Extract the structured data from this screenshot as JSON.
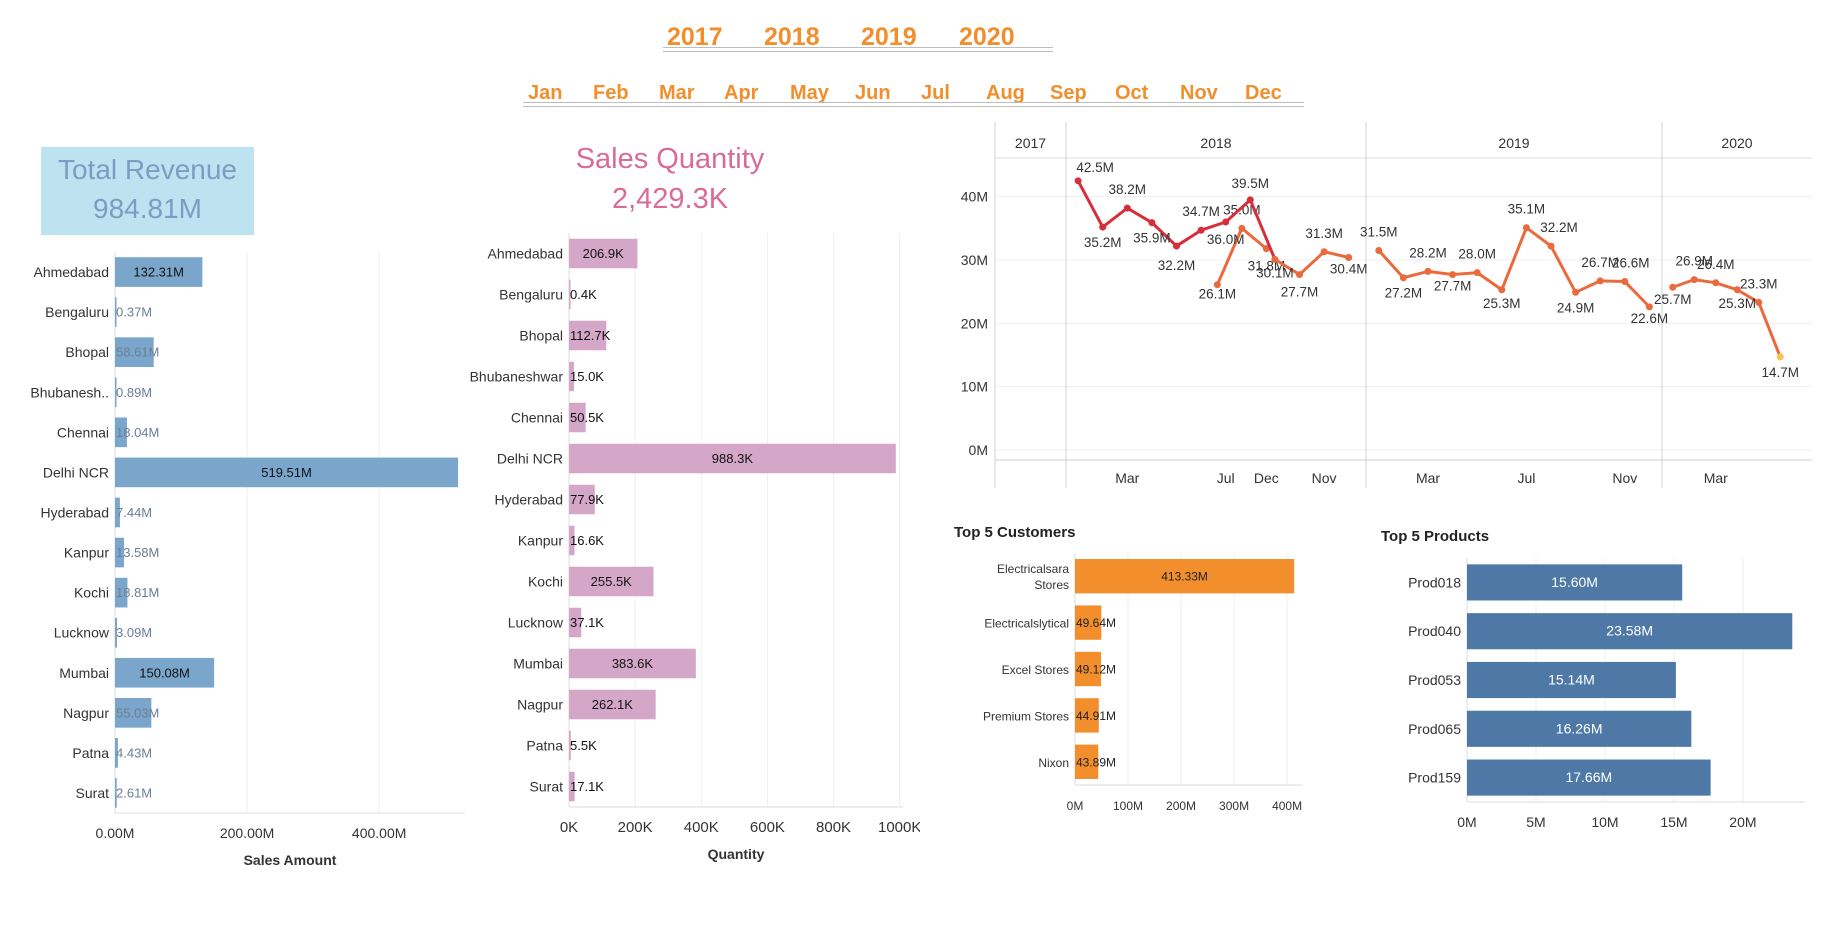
{
  "filters": {
    "years": [
      "2017",
      "2018",
      "2019",
      "2020"
    ],
    "months": [
      "Jan",
      "Feb",
      "Mar",
      "Apr",
      "May",
      "Jun",
      "Jul",
      "Aug",
      "Sep",
      "Oct",
      "Nov",
      "Dec"
    ]
  },
  "kpis": {
    "total_revenue": {
      "label": "Total Revenue",
      "value": "984.81M"
    },
    "sales_quantity": {
      "label": "Sales Quantity",
      "value": "2,429.3K"
    }
  },
  "colors": {
    "accent_orange": "#f28e2b",
    "revenue_bar": "#7aa6cc",
    "revenue_kpi_text": "#7b9dc3",
    "revenue_kpi_bg": "#bde3f1",
    "quantity_bar": "#d4a6c8",
    "quantity_kpi_text": "#d96b97",
    "products_bar": "#4e79a7",
    "line_dark": "#d62f3b",
    "line_mid": "#ea6a3d",
    "line_light": "#f7c24f"
  },
  "chart_data": [
    {
      "id": "revenue_by_market",
      "type": "bar",
      "orientation": "horizontal",
      "xlabel": "Sales Amount",
      "xlim": [
        0,
        530
      ],
      "xticks": [
        "0.00M",
        "200.00M",
        "400.00M"
      ],
      "categories": [
        "Ahmedabad",
        "Bengaluru",
        "Bhopal",
        "Bhubanesh..",
        "Chennai",
        "Delhi NCR",
        "Hyderabad",
        "Kanpur",
        "Kochi",
        "Lucknow",
        "Mumbai",
        "Nagpur",
        "Patna",
        "Surat"
      ],
      "values": [
        132.31,
        0.37,
        58.61,
        0.89,
        18.04,
        519.51,
        7.44,
        13.58,
        18.81,
        3.09,
        150.08,
        55.03,
        4.43,
        2.61
      ],
      "labels": [
        "132.31M",
        "0.37M",
        "58.61M",
        "0.89M",
        "18.04M",
        "519.51M",
        "7.44M",
        "13.58M",
        "18.81M",
        "3.09M",
        "150.08M",
        "55.03M",
        "4.43M",
        "2.61M"
      ]
    },
    {
      "id": "quantity_by_market",
      "type": "bar",
      "orientation": "horizontal",
      "xlabel": "Quantity",
      "xlim": [
        0,
        1010
      ],
      "xticks": [
        "0K",
        "200K",
        "400K",
        "600K",
        "800K",
        "1000K"
      ],
      "categories": [
        "Ahmedabad",
        "Bengaluru",
        "Bhopal",
        "Bhubaneshwar",
        "Chennai",
        "Delhi NCR",
        "Hyderabad",
        "Kanpur",
        "Kochi",
        "Lucknow",
        "Mumbai",
        "Nagpur",
        "Patna",
        "Surat"
      ],
      "values": [
        206.9,
        0.4,
        112.7,
        15.0,
        50.5,
        988.3,
        77.9,
        16.6,
        255.5,
        37.1,
        383.6,
        262.1,
        5.5,
        17.1
      ],
      "labels": [
        "206.9K",
        "0.4K",
        "112.7K",
        "15.0K",
        "50.5K",
        "988.3K",
        "77.9K",
        "16.6K",
        "255.5K",
        "37.1K",
        "383.6K",
        "262.1K",
        "5.5K",
        "17.1K"
      ]
    },
    {
      "id": "revenue_trend",
      "type": "line",
      "ylim": [
        0,
        45
      ],
      "yticks": [
        "0M",
        "10M",
        "20M",
        "30M",
        "40M"
      ],
      "panels": [
        {
          "year": "2017",
          "ticks": [
            "Dec"
          ],
          "x": [
            "Oct",
            "Nov",
            "Dec"
          ],
          "values": [
            26.1,
            35.0,
            31.8
          ],
          "labels": [
            "26.1M",
            "35.0M",
            "31.8M"
          ]
        },
        {
          "year": "2018",
          "ticks": [
            "Mar",
            "Jul",
            "Nov"
          ],
          "x": [
            "Jan",
            "Feb",
            "Mar",
            "Apr",
            "May",
            "Jun",
            "Jul",
            "Aug",
            "Sep",
            "Oct",
            "Nov",
            "Dec"
          ],
          "values": [
            42.5,
            35.2,
            38.2,
            35.9,
            32.2,
            34.7,
            36.0,
            39.5,
            30.1,
            27.7,
            31.3,
            30.4
          ],
          "labels": [
            "42.5M",
            "35.2M",
            "38.2M",
            "35.9M",
            "32.2M",
            "34.7M",
            "36.0M",
            "39.5M",
            "30.1M",
            "27.7M",
            "31.3M",
            "30.4M"
          ]
        },
        {
          "year": "2019",
          "ticks": [
            "Mar",
            "Jul",
            "Nov"
          ],
          "x": [
            "Jan",
            "Feb",
            "Mar",
            "Apr",
            "May",
            "Jun",
            "Jul",
            "Aug",
            "Sep",
            "Oct",
            "Nov",
            "Dec"
          ],
          "values": [
            31.5,
            27.2,
            28.2,
            27.7,
            28.0,
            25.3,
            35.1,
            32.2,
            24.9,
            26.7,
            26.6,
            22.6
          ],
          "labels": [
            "31.5M",
            "27.2M",
            "28.2M",
            "27.7M",
            "28.0M",
            "25.3M",
            "35.1M",
            "32.2M",
            "24.9M",
            "26.7M",
            "26.6M",
            "22.6M"
          ]
        },
        {
          "year": "2020",
          "ticks": [
            "Mar"
          ],
          "x": [
            "Jan",
            "Feb",
            "Mar",
            "Apr",
            "May",
            "Jun"
          ],
          "values": [
            25.7,
            26.9,
            26.4,
            25.3,
            23.3,
            14.7
          ],
          "labels": [
            "25.7M",
            "26.9M",
            "26.4M",
            "25.3M",
            "23.3M",
            "14.7M"
          ]
        }
      ]
    },
    {
      "id": "top_customers",
      "type": "bar",
      "orientation": "horizontal",
      "title": "Top 5 Customers",
      "xlim": [
        0,
        430
      ],
      "xticks": [
        "0M",
        "100M",
        "200M",
        "300M",
        "400M"
      ],
      "categories": [
        [
          "Electricalsara",
          "Stores"
        ],
        [
          "Electricalslytical"
        ],
        [
          "Excel Stores"
        ],
        [
          "Premium Stores"
        ],
        [
          "Nixon"
        ]
      ],
      "values": [
        413.33,
        49.64,
        49.12,
        44.91,
        43.89
      ],
      "labels": [
        "413.33M",
        "49.64M",
        "49.12M",
        "44.91M",
        "43.89M"
      ]
    },
    {
      "id": "top_products",
      "type": "bar",
      "orientation": "horizontal",
      "title": "Top 5 Products",
      "xlim": [
        0,
        24.5
      ],
      "xticks": [
        "0M",
        "5M",
        "10M",
        "15M",
        "20M"
      ],
      "categories": [
        "Prod018",
        "Prod040",
        "Prod053",
        "Prod065",
        "Prod159"
      ],
      "values": [
        15.6,
        23.58,
        15.14,
        16.26,
        17.66
      ],
      "labels": [
        "15.60M",
        "23.58M",
        "15.14M",
        "16.26M",
        "17.66M"
      ]
    }
  ]
}
